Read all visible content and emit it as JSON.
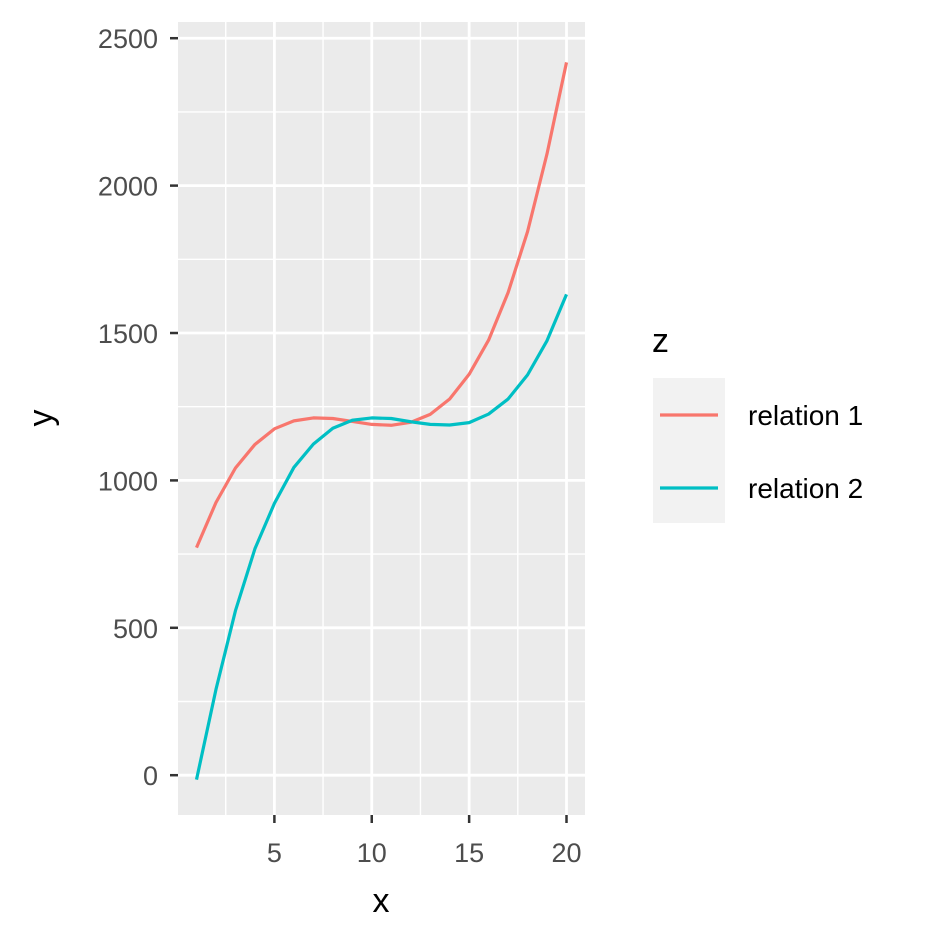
{
  "chart_data": {
    "type": "line",
    "title": "",
    "xlabel": "x",
    "ylabel": "y",
    "xlim": [
      0.05,
      20.95
    ],
    "ylim": [
      -135,
      2555
    ],
    "x_ticks": [
      5,
      10,
      15,
      20
    ],
    "y_ticks": [
      0,
      500,
      1000,
      1500,
      2000,
      2500
    ],
    "x_tick_labels": [
      "5",
      "10",
      "15",
      "20"
    ],
    "y_tick_labels": [
      "0",
      "500",
      "1000",
      "1500",
      "2000",
      "2500"
    ],
    "grid": true,
    "background_color": "#ebebeb",
    "legend": {
      "title": "z",
      "placement": "right",
      "background_color": "#f2f2f2"
    },
    "x": [
      1,
      2,
      3,
      4,
      5,
      6,
      7,
      8,
      9,
      10,
      11,
      12,
      13,
      14,
      15,
      16,
      17,
      18,
      19,
      20
    ],
    "series": [
      {
        "name": "relation 1",
        "color": "#f8766d",
        "values": [
          772,
          925,
          1042,
          1122,
          1175,
          1202,
          1212,
          1210,
          1200,
          1190,
          1187,
          1197,
          1224,
          1276,
          1360,
          1476,
          1637,
          1844,
          2108,
          2418
        ]
      },
      {
        "name": "relation 2",
        "color": "#00bfc4",
        "values": [
          -15,
          291,
          558,
          768,
          922,
          1044,
          1123,
          1177,
          1204,
          1212,
          1210,
          1199,
          1190,
          1188,
          1196,
          1225,
          1276,
          1358,
          1474,
          1631
        ]
      }
    ]
  }
}
